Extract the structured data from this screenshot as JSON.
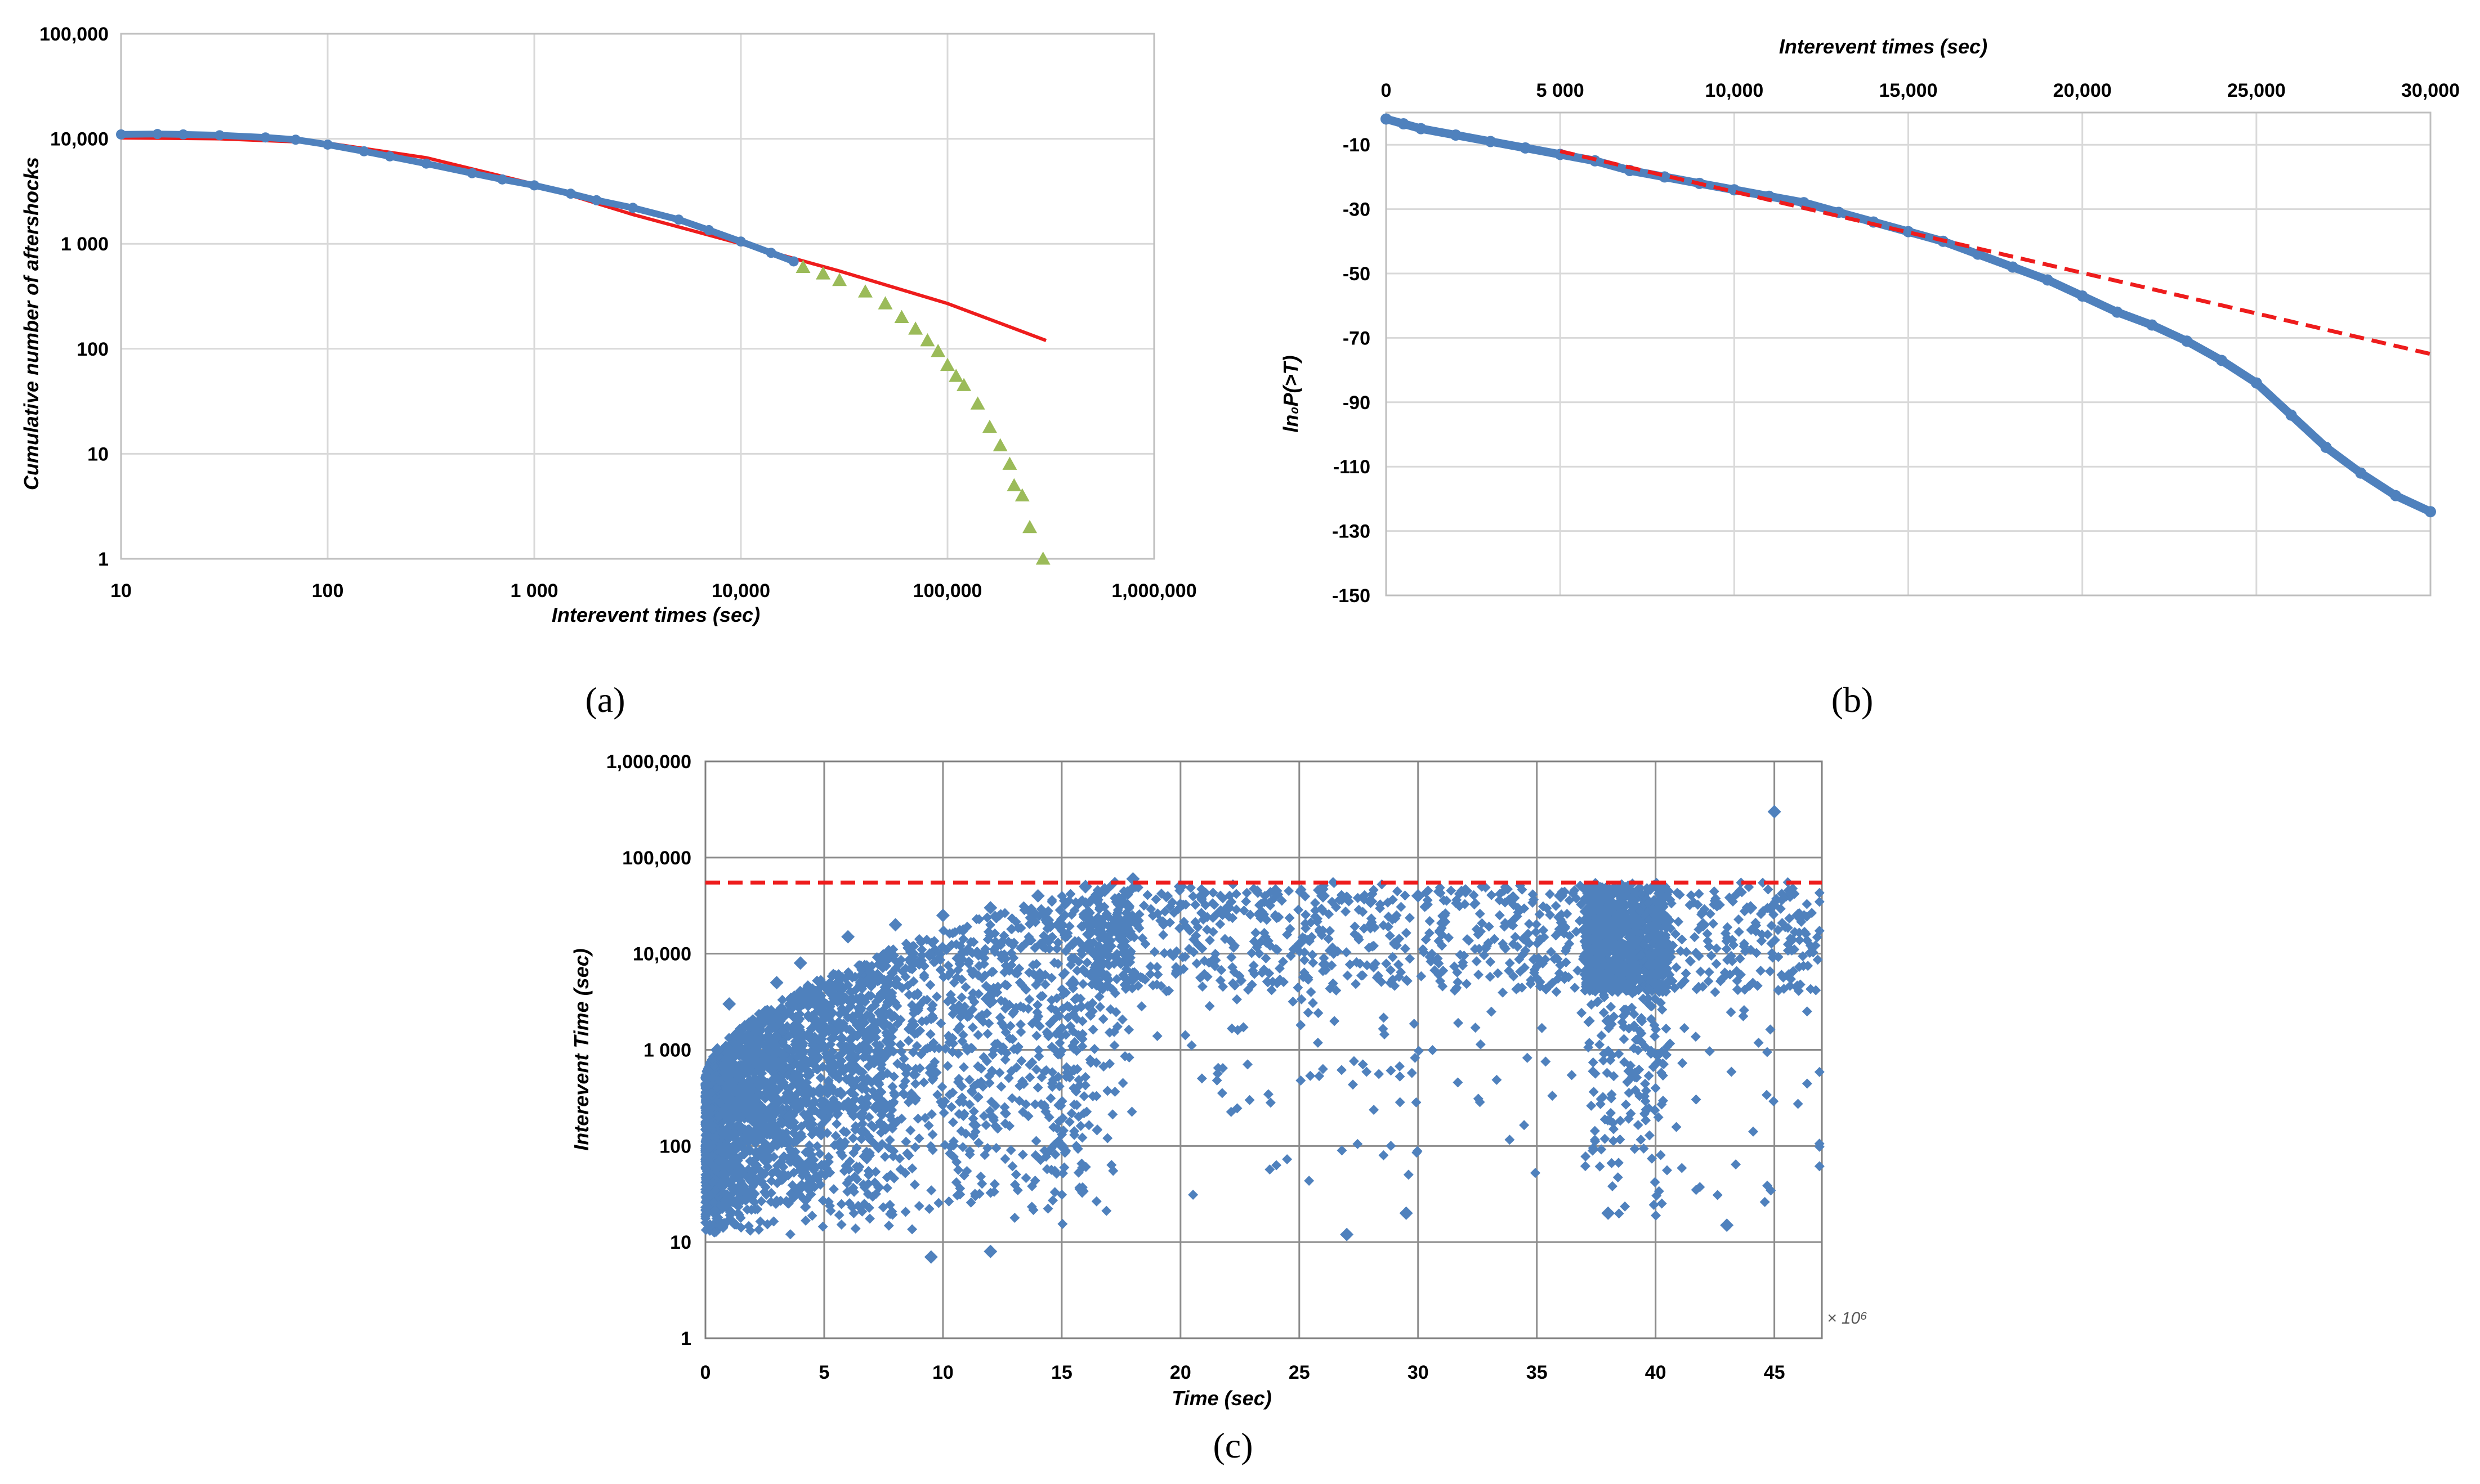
{
  "colors": {
    "blue": "#4f81bd",
    "red": "#ee1c1c",
    "green": "#9bbb59",
    "grid": "#d9d9d9"
  },
  "panels": {
    "a": "(a)",
    "b": "(b)",
    "c": "(c)"
  },
  "chart_data": [
    {
      "id": "a",
      "type": "scatter",
      "xscale": "log",
      "yscale": "log",
      "xlim": [
        10,
        1000000
      ],
      "ylim": [
        1,
        100000
      ],
      "xlabel": "Interevent times (sec)",
      "ylabel": "Cumulative number of aftershocks",
      "xtick_labels": [
        "10",
        "100",
        "1 000",
        "10,000",
        "100,000",
        "1,000,000"
      ],
      "ytick_labels": [
        "1",
        "10",
        "100",
        "1 000",
        "10,000",
        "100,000"
      ],
      "grid": true,
      "series": [
        {
          "kind": "points",
          "color": "blue",
          "x": [
            10,
            15,
            20,
            30,
            50,
            70,
            100,
            150,
            200,
            300,
            500,
            700,
            1000,
            1500,
            2000,
            3000,
            5000,
            7000,
            10000,
            14000,
            18000
          ],
          "y": [
            11000,
            11100,
            11000,
            10800,
            10300,
            9800,
            8800,
            7600,
            6800,
            5800,
            4700,
            4100,
            3600,
            3000,
            2600,
            2200,
            1700,
            1350,
            1050,
            820,
            680
          ]
        },
        {
          "kind": "line",
          "color": "red",
          "x": [
            10,
            30,
            100,
            300,
            1000,
            3000,
            10000,
            30000,
            100000,
            300000
          ],
          "y": [
            10200,
            10000,
            9100,
            6600,
            3700,
            1900,
            1000,
            550,
            270,
            120
          ]
        },
        {
          "kind": "triangles",
          "color": "green",
          "x": [
            20000,
            25000,
            30000,
            40000,
            50000,
            60000,
            70000,
            80000,
            90000,
            100000,
            110000,
            120000,
            140000,
            160000,
            180000,
            200000,
            210000,
            230000,
            250000,
            290000
          ],
          "y": [
            600,
            520,
            450,
            350,
            270,
            200,
            155,
            120,
            95,
            70,
            55,
            45,
            30,
            18,
            12,
            8,
            5,
            4,
            2,
            1
          ]
        }
      ]
    },
    {
      "id": "b",
      "type": "scatter",
      "xlim": [
        0,
        30000
      ],
      "ylim": [
        -150,
        0
      ],
      "xlabel": "Interevent times (sec)",
      "ylabel": "ln₀P(>T)",
      "xtick_labels": [
        "0",
        "5 000",
        "10,000",
        "15,000",
        "20,000",
        "25,000",
        "30,000"
      ],
      "ytick_labels": [
        "-10",
        "-30",
        "-50",
        "-70",
        "-90",
        "-110",
        "-130",
        "-150"
      ],
      "yticks": [
        -10,
        -30,
        -50,
        -70,
        -90,
        -110,
        -130,
        -150
      ],
      "grid": true,
      "series": [
        {
          "kind": "points",
          "color": "blue",
          "x": [
            0,
            500,
            1000,
            2000,
            3000,
            4000,
            5000,
            6000,
            7000,
            8000,
            9000,
            10000,
            11000,
            12000,
            13000,
            14000,
            15000,
            16000,
            17000,
            18000,
            19000,
            20000,
            21000,
            22000,
            23000,
            24000,
            25000,
            26000,
            27000,
            28000,
            29000,
            30000
          ],
          "y": [
            -2,
            -3.5,
            -5,
            -7,
            -9,
            -11,
            -13,
            -15,
            -18,
            -20,
            -22,
            -24,
            -26,
            -28,
            -31,
            -34,
            -37,
            -40,
            -44,
            -48,
            -52,
            -57,
            -62,
            -66,
            -71,
            -77,
            -84,
            -94,
            -104,
            -112,
            -119,
            -124
          ]
        },
        {
          "kind": "dashed-line",
          "color": "red",
          "x": [
            5000,
            30000
          ],
          "y": [
            -12,
            -75
          ]
        }
      ]
    },
    {
      "id": "c",
      "type": "scatter",
      "xscale": "linear",
      "yscale": "log",
      "xlim": [
        0,
        47
      ],
      "ylim": [
        1,
        1000000
      ],
      "x_multiplier": "× 10⁶",
      "xlabel": "Time (sec)",
      "ylabel": "Interevent Time (sec)",
      "xtick_labels": [
        "0",
        "5",
        "10",
        "15",
        "20",
        "25",
        "30",
        "35",
        "40",
        "45"
      ],
      "ytick_labels": [
        "1",
        "10",
        "100",
        "1 000",
        "10,000",
        "100,000",
        "1,000,000"
      ],
      "grid": true,
      "threshold_y": 55000,
      "series": [
        {
          "kind": "diamonds",
          "color": "blue",
          "x": [
            0.2,
            0.5,
            0.8,
            1.0,
            1.5,
            2.0,
            2.5,
            3.0,
            3.5,
            4.0,
            5.0,
            6.0,
            7.0,
            8.0,
            9.0,
            10.0,
            12.0,
            14.0,
            16.0,
            18.0,
            20.0,
            22.0,
            24.0,
            26.0,
            28.0,
            30.0,
            32.0,
            34.0,
            36.0,
            38.0,
            40.0,
            42.0,
            44.0,
            46.0,
            9.5,
            12.0,
            29.5,
            38.0,
            43.0,
            45.0,
            27.0
          ],
          "y": [
            100,
            1000,
            50,
            3000,
            300,
            2000,
            800,
            5000,
            200,
            8000,
            3000,
            15000,
            5000,
            20000,
            8000,
            25000,
            30000,
            40000,
            50000,
            60000,
            50000,
            30000,
            45000,
            40000,
            35000,
            40000,
            45000,
            38000,
            40000,
            2000,
            15000,
            20000,
            30000,
            25000,
            7,
            8,
            20,
            20,
            15,
            300000,
            12
          ]
        }
      ]
    }
  ]
}
